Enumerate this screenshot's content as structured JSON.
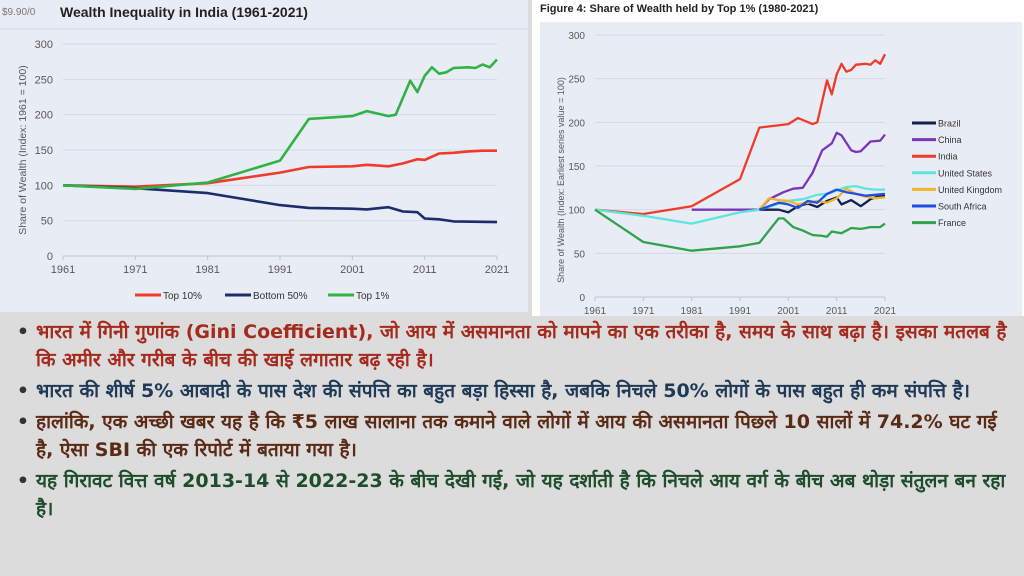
{
  "charts_colors": {
    "grid": "#d4d9e3",
    "axis_text": "#595959"
  },
  "bullets": [
    {
      "text": "भारत में गिनी गुणांक (Gini Coefficient), जो आय में असमानता को मापने का एक तरीका है, समय के साथ बढ़ा है। इसका मतलब है कि अमीर और गरीब के बीच की खाई लगातार बढ़ रही है।",
      "color": "#a52a1e"
    },
    {
      "text": "भारत की शीर्ष 5% आबादी के पास देश की संपत्ति का बहुत बड़ा हिस्सा है, जबकि निचले 50% लोगों के पास बहुत ही कम संपत्ति है।",
      "color": "#1f3a56"
    },
    {
      "text": "हालांकि, एक अच्छी खबर यह है कि ₹5 लाख सालाना तक कमाने वाले लोगों में आय की असमानता पिछले 10 सालों में 74.2% घट गई है, ऐसा SBI की एक रिपोर्ट में बताया गया है।",
      "color": "#5b2a14"
    },
    {
      "text": "यह गिरावट वित्त वर्ष 2013-14 से 2022-23 के बीच देखी गई, जो यह दर्शाती है कि निचले आय वर्ग के बीच अब थोड़ा संतुलन बन रहा है।",
      "color": "#1e4d2b"
    }
  ],
  "chart_data": [
    {
      "type": "line",
      "corner_label": "$9.90/0",
      "title": "Wealth Inequality in India (1961-2021)",
      "xlabel": "",
      "ylabel": "Share of Wealth (Index: 1961 = 100)",
      "xlim": [
        1961,
        2021
      ],
      "ylim": [
        0,
        300
      ],
      "xticks": [
        "1961",
        "1971",
        "1981",
        "1991",
        "2001",
        "2011",
        "2021"
      ],
      "yticks": [
        "0",
        "50",
        "100",
        "150",
        "200",
        "250",
        "300"
      ],
      "grid": true,
      "legend": "bottom",
      "series": [
        {
          "name": "Top 10%",
          "color": "#f03a2a",
          "x": [
            1961,
            1971,
            1981,
            1991,
            1995,
            2001,
            2003,
            2006,
            2008,
            2010,
            2011,
            2013,
            2015,
            2017,
            2019,
            2021
          ],
          "y": [
            100,
            98,
            103,
            118,
            126,
            127,
            129,
            127,
            131,
            137,
            136,
            145,
            146,
            148,
            149,
            149
          ]
        },
        {
          "name": "Bottom 50%",
          "color": "#1c2d6b",
          "x": [
            1961,
            1971,
            1981,
            1991,
            1995,
            2001,
            2003,
            2006,
            2008,
            2010,
            2011,
            2013,
            2015,
            2021
          ],
          "y": [
            100,
            96,
            89,
            72,
            68,
            67,
            66,
            69,
            63,
            62,
            53,
            52,
            49,
            48
          ]
        },
        {
          "name": "Top 1%",
          "color": "#2fb344",
          "x": [
            1961,
            1971,
            1981,
            1991,
            1995,
            2001,
            2003,
            2006,
            2007,
            2009,
            2010,
            2011,
            2012,
            2013,
            2014,
            2015,
            2017,
            2018,
            2019,
            2020,
            2021
          ],
          "y": [
            100,
            95,
            104,
            135,
            194,
            198,
            205,
            198,
            200,
            248,
            232,
            255,
            267,
            258,
            260,
            266,
            267,
            266,
            271,
            267,
            278
          ]
        }
      ]
    },
    {
      "type": "line",
      "title": "Figure 4: Share of Wealth held by Top 1% (1980-2021)",
      "xlabel": "",
      "ylabel": "Share of Wealth (Index: Earliest series value = 100)",
      "xlim": [
        1961,
        2021
      ],
      "ylim": [
        0,
        300
      ],
      "xticks": [
        "1961",
        "1971",
        "1981",
        "1991",
        "2001",
        "2011",
        "2021"
      ],
      "yticks": [
        "0",
        "50",
        "100",
        "150",
        "200",
        "250",
        "300"
      ],
      "grid": true,
      "legend": "right",
      "series": [
        {
          "name": "Brazil",
          "color": "#13214f",
          "x": [
            1995,
            1997,
            1999,
            2001,
            2003,
            2005,
            2007,
            2009,
            2011,
            2012,
            2014,
            2016,
            2018,
            2020,
            2021
          ],
          "y": [
            100,
            100,
            100,
            97,
            104,
            107,
            103,
            110,
            114,
            106,
            111,
            104,
            112,
            116,
            116
          ]
        },
        {
          "name": "China",
          "color": "#7a35b8",
          "x": [
            1981,
            1995,
            1997,
            2000,
            2002,
            2004,
            2006,
            2008,
            2010,
            2011,
            2012,
            2014,
            2015,
            2016,
            2018,
            2020,
            2021
          ],
          "y": [
            100,
            100,
            112,
            120,
            124,
            125,
            142,
            168,
            176,
            188,
            185,
            168,
            166,
            167,
            178,
            179,
            186
          ]
        },
        {
          "name": "India",
          "color": "#f03a2a",
          "x": [
            1961,
            1971,
            1981,
            1991,
            1995,
            2001,
            2003,
            2006,
            2007,
            2009,
            2010,
            2011,
            2012,
            2013,
            2014,
            2015,
            2017,
            2018,
            2019,
            2020,
            2021
          ],
          "y": [
            100,
            95,
            104,
            135,
            194,
            198,
            205,
            198,
            200,
            248,
            232,
            255,
            267,
            258,
            260,
            266,
            267,
            266,
            271,
            267,
            278
          ]
        },
        {
          "name": "United States",
          "color": "#5ee6dc",
          "x": [
            1961,
            1971,
            1981,
            1991,
            1995,
            1998,
            2001,
            2004,
            2007,
            2009,
            2011,
            2013,
            2015,
            2017,
            2019,
            2021
          ],
          "y": [
            100,
            93,
            84,
            97,
            100,
            105,
            110,
            112,
            117,
            118,
            122,
            126,
            127,
            124,
            123,
            123
          ]
        },
        {
          "name": "United Kingdom",
          "color": "#f2b52a",
          "x": [
            1995,
            1997,
            1999,
            2001,
            2003,
            2005,
            2007,
            2009,
            2011,
            2013,
            2015,
            2017,
            2019,
            2021
          ],
          "y": [
            100,
            113,
            111,
            110,
            106,
            108,
            110,
            108,
            113,
            124,
            118,
            115,
            113,
            114
          ]
        },
        {
          "name": "South Africa",
          "color": "#1f4fe0",
          "x": [
            1995,
            1997,
            1999,
            2001,
            2003,
            2005,
            2007,
            2009,
            2011,
            2013,
            2015,
            2017,
            2019,
            2021
          ],
          "y": [
            100,
            104,
            108,
            106,
            102,
            110,
            108,
            118,
            123,
            120,
            118,
            116,
            117,
            118
          ]
        },
        {
          "name": "France",
          "color": "#2ea34a",
          "x": [
            1961,
            1971,
            1981,
            1991,
            1995,
            1997,
            1999,
            2000,
            2002,
            2004,
            2006,
            2008,
            2009,
            2010,
            2012,
            2014,
            2016,
            2018,
            2020,
            2021
          ],
          "y": [
            100,
            63,
            53,
            58,
            62,
            76,
            90,
            90,
            80,
            76,
            71,
            70,
            69,
            75,
            73,
            79,
            78,
            80,
            80,
            84
          ]
        }
      ]
    }
  ]
}
